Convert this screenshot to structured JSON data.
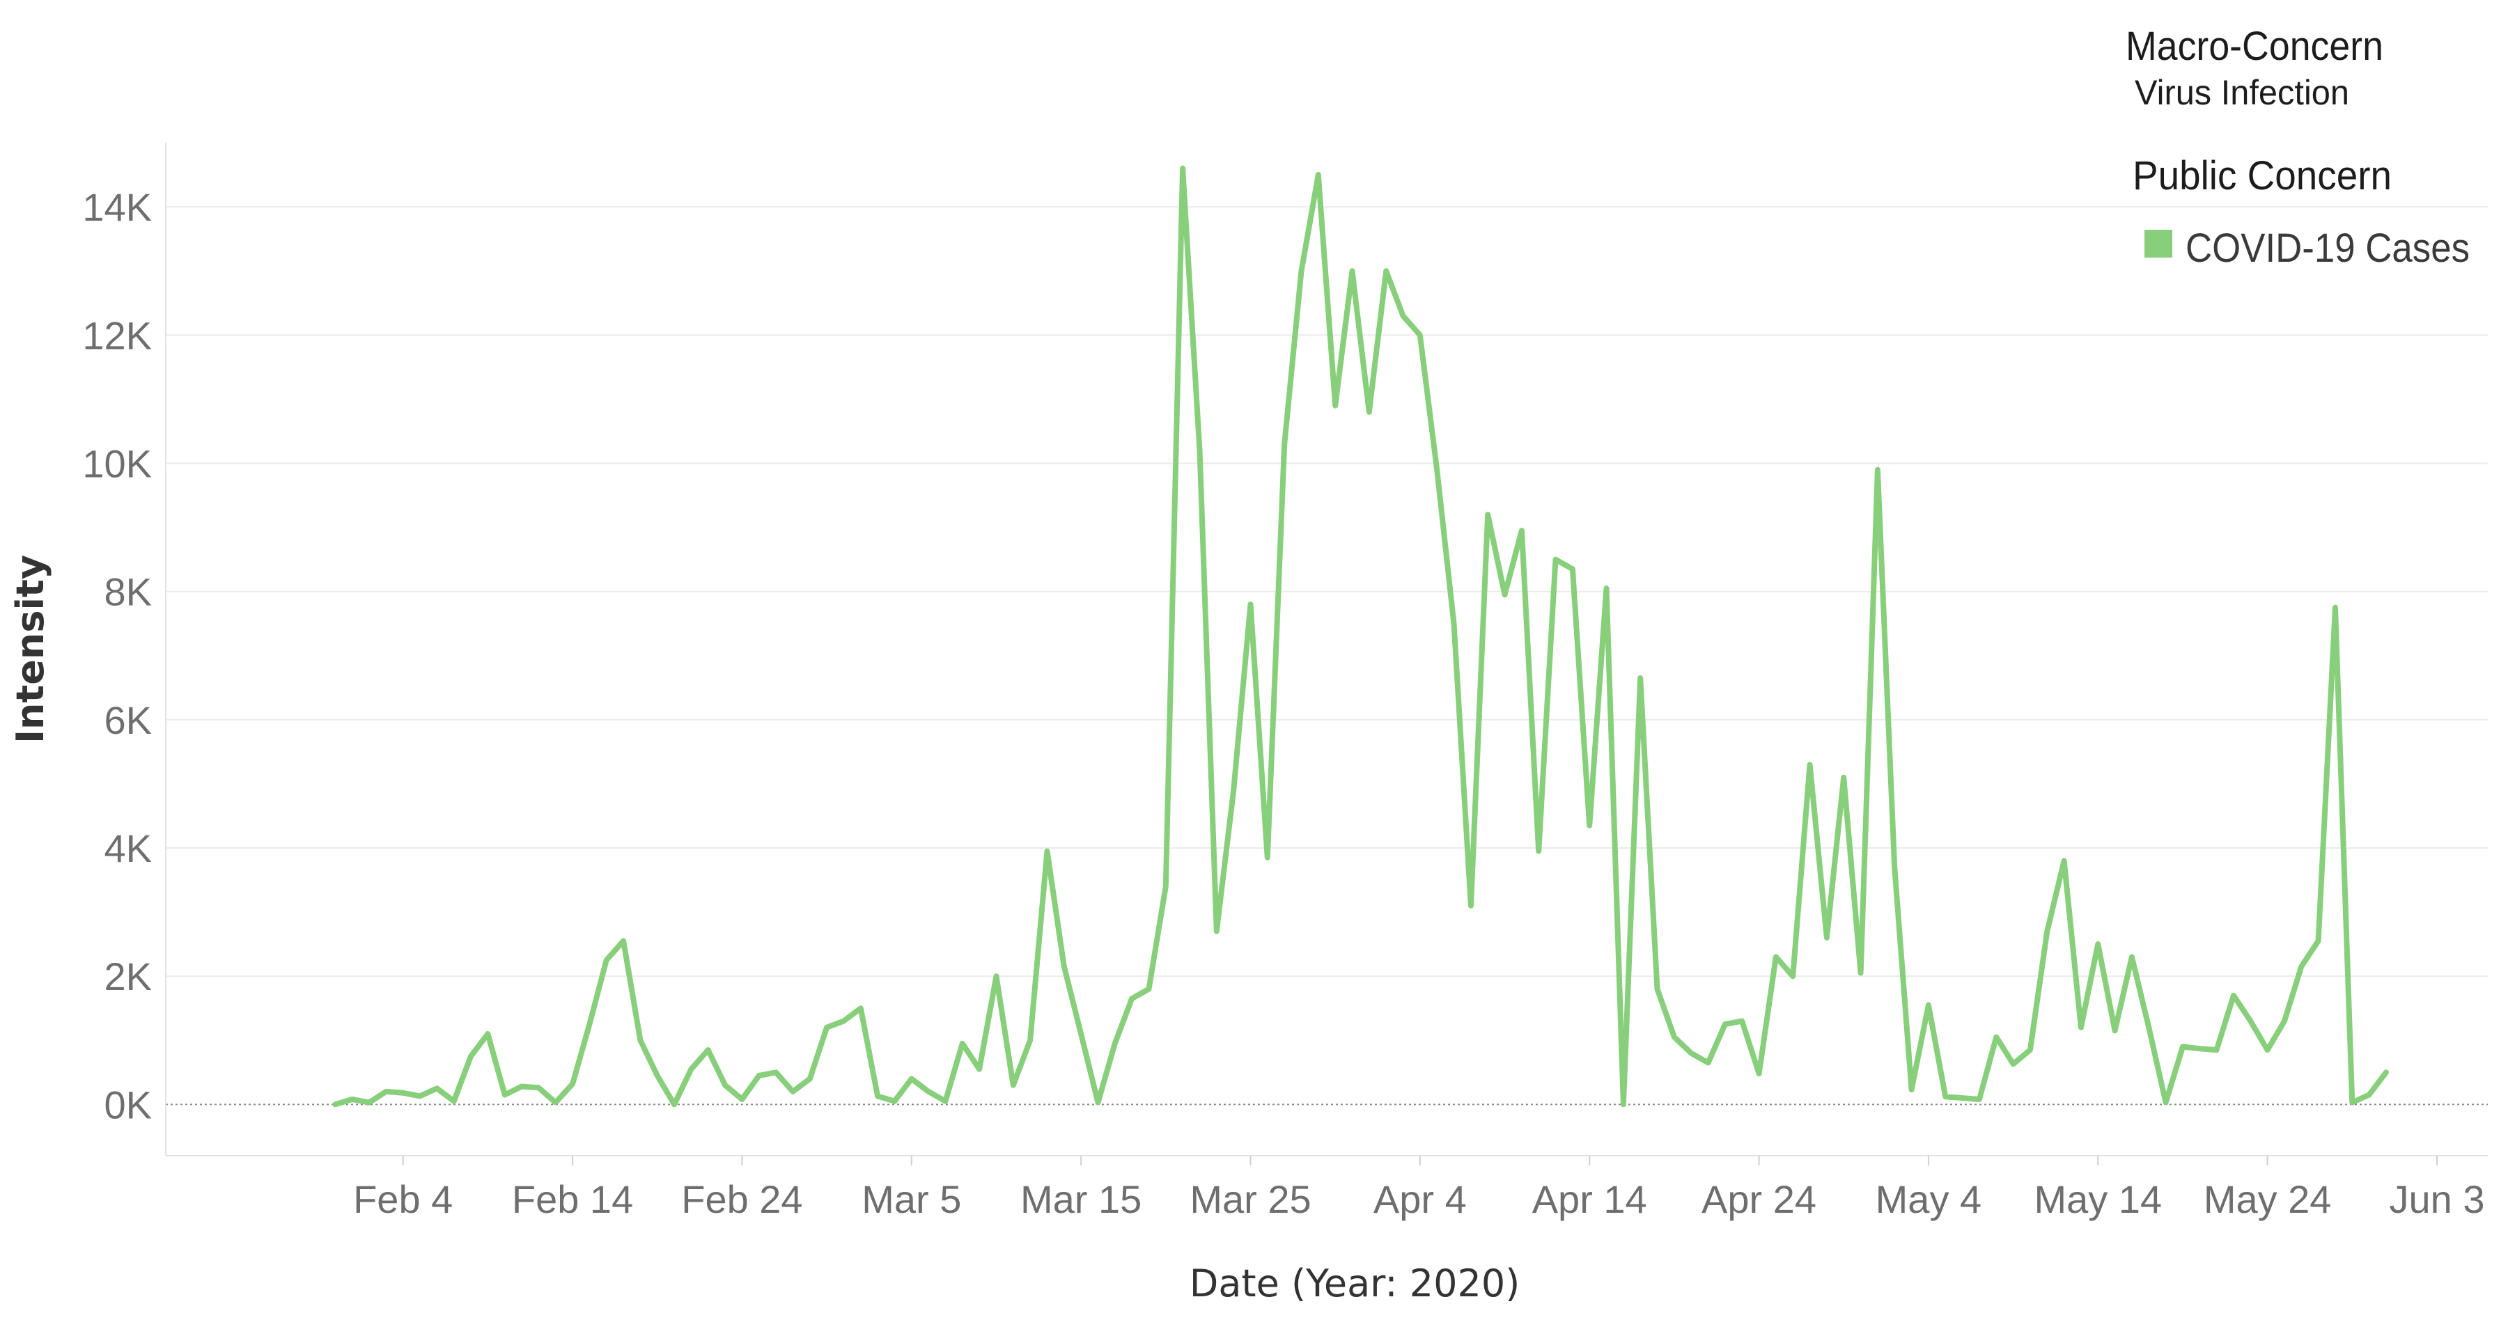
{
  "legend": {
    "macro_title": "Macro-Concern",
    "macro_value": "Virus Infection",
    "public_title": "Public Concern",
    "items": [
      {
        "label": "COVID-19 Cases",
        "color": "#87cf7b"
      }
    ]
  },
  "chart_data": {
    "type": "line",
    "xlabel": "Date (Year: 2020)",
    "ylabel": "Intensity",
    "x_start": "2020-01-31",
    "x_end": "2020-05-29",
    "xlim": [
      "2020-01-21",
      "2020-06-06"
    ],
    "ylim": [
      -800,
      15000
    ],
    "grid": true,
    "legend_position": "top-right",
    "x_ticks": [
      {
        "date": "2020-02-04",
        "label": "Feb 4"
      },
      {
        "date": "2020-02-14",
        "label": "Feb 14"
      },
      {
        "date": "2020-02-24",
        "label": "Feb 24"
      },
      {
        "date": "2020-03-05",
        "label": "Mar 5"
      },
      {
        "date": "2020-03-15",
        "label": "Mar 15"
      },
      {
        "date": "2020-03-25",
        "label": "Mar 25"
      },
      {
        "date": "2020-04-04",
        "label": "Apr 4"
      },
      {
        "date": "2020-04-14",
        "label": "Apr 14"
      },
      {
        "date": "2020-04-24",
        "label": "Apr 24"
      },
      {
        "date": "2020-05-04",
        "label": "May 4"
      },
      {
        "date": "2020-05-14",
        "label": "May 14"
      },
      {
        "date": "2020-05-24",
        "label": "May 24"
      },
      {
        "date": "2020-06-03",
        "label": "Jun 3"
      }
    ],
    "y_ticks": [
      {
        "value": 0,
        "label": "0K"
      },
      {
        "value": 2000,
        "label": "2K"
      },
      {
        "value": 4000,
        "label": "4K"
      },
      {
        "value": 6000,
        "label": "6K"
      },
      {
        "value": 8000,
        "label": "8K"
      },
      {
        "value": 10000,
        "label": "10K"
      },
      {
        "value": 12000,
        "label": "12K"
      },
      {
        "value": 14000,
        "label": "14K"
      }
    ],
    "series": [
      {
        "name": "COVID-19 Cases",
        "color": "#87cf7b",
        "values": [
          0,
          80,
          30,
          200,
          180,
          130,
          250,
          50,
          750,
          1100,
          150,
          280,
          260,
          30,
          320,
          1250,
          2250,
          2550,
          1000,
          450,
          0,
          550,
          850,
          300,
          80,
          450,
          500,
          200,
          400,
          1200,
          1300,
          1500,
          130,
          50,
          400,
          200,
          50,
          950,
          550,
          2000,
          300,
          1000,
          3950,
          2150,
          1100,
          30,
          950,
          1650,
          1800,
          3400,
          14600,
          10200,
          2700,
          4900,
          7800,
          3850,
          10300,
          13000,
          14500,
          10900,
          13000,
          10800,
          13000,
          12300,
          12000,
          9900,
          7500,
          3100,
          9200,
          7950,
          8950,
          3950,
          8500,
          8350,
          4350,
          8050,
          0,
          6650,
          1800,
          1050,
          800,
          650,
          1250,
          1300,
          480,
          2300,
          2000,
          5300,
          2600,
          5100,
          2050,
          9900,
          3700,
          230,
          1550,
          120,
          100,
          80,
          1050,
          630,
          850,
          2700,
          3800,
          1200,
          2500,
          1150,
          2300,
          1200,
          30,
          900,
          870,
          850,
          1700,
          1300,
          850,
          1300,
          2150,
          2550,
          7750,
          30,
          150,
          500
        ]
      }
    ]
  }
}
